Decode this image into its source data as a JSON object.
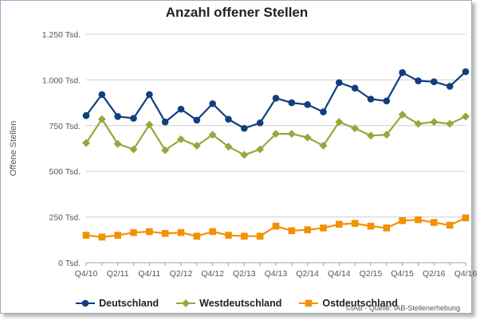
{
  "chart_data": {
    "type": "line",
    "title": "Anzahl offener Stellen",
    "ylabel": "Offene Stellen",
    "xlabel": "",
    "ylim": [
      0,
      1250
    ],
    "yticks": [
      {
        "value": 0,
        "label": "0 Tsd."
      },
      {
        "value": 250,
        "label": "250 Tsd."
      },
      {
        "value": 500,
        "label": "500 Tsd."
      },
      {
        "value": 750,
        "label": "750 Tsd."
      },
      {
        "value": 1000,
        "label": "1.000 Tsd."
      },
      {
        "value": 1250,
        "label": "1.250 Tsd."
      }
    ],
    "grid": true,
    "legend_position": "bottom",
    "categories": [
      "Q4/10",
      "Q1/11",
      "Q2/11",
      "Q3/11",
      "Q4/11",
      "Q1/12",
      "Q2/12",
      "Q3/12",
      "Q4/12",
      "Q1/13",
      "Q2/13",
      "Q3/13",
      "Q4/13",
      "Q1/14",
      "Q2/14",
      "Q3/14",
      "Q4/14",
      "Q1/15",
      "Q2/15",
      "Q3/15",
      "Q4/15",
      "Q1/16",
      "Q2/16",
      "Q3/16",
      "Q4/16"
    ],
    "xtick_labels": [
      "Q4/10",
      "Q2/11",
      "Q4/11",
      "Q2/12",
      "Q4/12",
      "Q2/13",
      "Q4/13",
      "Q2/14",
      "Q4/14",
      "Q2/15",
      "Q4/15",
      "Q2/16",
      "Q4/16"
    ],
    "series": [
      {
        "name": "Deutschland",
        "color": "#0f3f7f",
        "marker": "circle",
        "values": [
          805,
          920,
          800,
          790,
          920,
          770,
          840,
          780,
          870,
          785,
          735,
          765,
          900,
          875,
          865,
          825,
          985,
          955,
          895,
          885,
          1040,
          995,
          990,
          965,
          1045
        ]
      },
      {
        "name": "Westdeutschland",
        "color": "#9ea43d",
        "marker": "diamond",
        "values": [
          655,
          785,
          650,
          620,
          755,
          615,
          675,
          640,
          700,
          635,
          590,
          620,
          705,
          705,
          685,
          640,
          770,
          735,
          695,
          700,
          810,
          760,
          770,
          760,
          800
        ]
      },
      {
        "name": "Ostdeutschland",
        "color": "#f29200",
        "marker": "square",
        "values": [
          150,
          140,
          150,
          165,
          170,
          160,
          165,
          145,
          170,
          150,
          145,
          145,
          200,
          175,
          180,
          190,
          210,
          215,
          200,
          190,
          230,
          235,
          220,
          205,
          245
        ]
      }
    ]
  },
  "footer": {
    "source": "©IAB - Quelle: IAB-Stellenerhebung"
  }
}
